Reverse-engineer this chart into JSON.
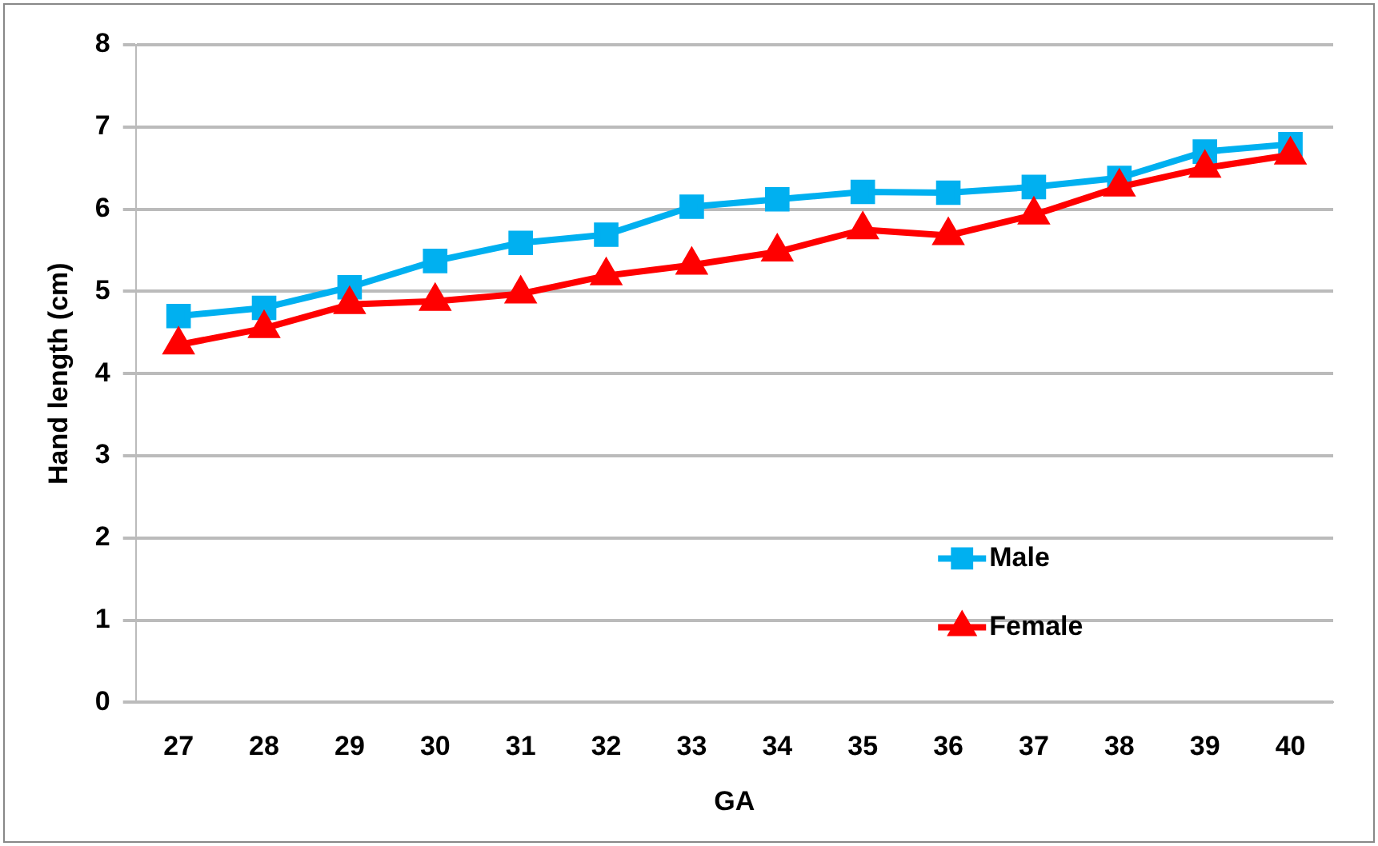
{
  "chart_data": {
    "type": "line",
    "xlabel": "GA",
    "ylabel": "Hand length (cm)",
    "categories": [
      "27",
      "28",
      "29",
      "30",
      "31",
      "32",
      "33",
      "34",
      "35",
      "36",
      "37",
      "38",
      "39",
      "40"
    ],
    "series": [
      {
        "name": "Male",
        "color": "#00b0f0",
        "marker": "square",
        "values": [
          4.7,
          4.8,
          5.05,
          5.37,
          5.59,
          5.69,
          6.03,
          6.12,
          6.21,
          6.2,
          6.27,
          6.38,
          6.7,
          6.79
        ]
      },
      {
        "name": "Female",
        "color": "#ff0000",
        "marker": "triangle",
        "values": [
          4.35,
          4.55,
          4.84,
          4.88,
          4.97,
          5.19,
          5.32,
          5.48,
          5.75,
          5.68,
          5.93,
          6.27,
          6.5,
          6.66
        ]
      }
    ],
    "ylim": [
      0,
      8
    ],
    "yticks": [
      0,
      1,
      2,
      3,
      4,
      5,
      6,
      7,
      8
    ],
    "grid": "y",
    "legend": "bottom right"
  }
}
